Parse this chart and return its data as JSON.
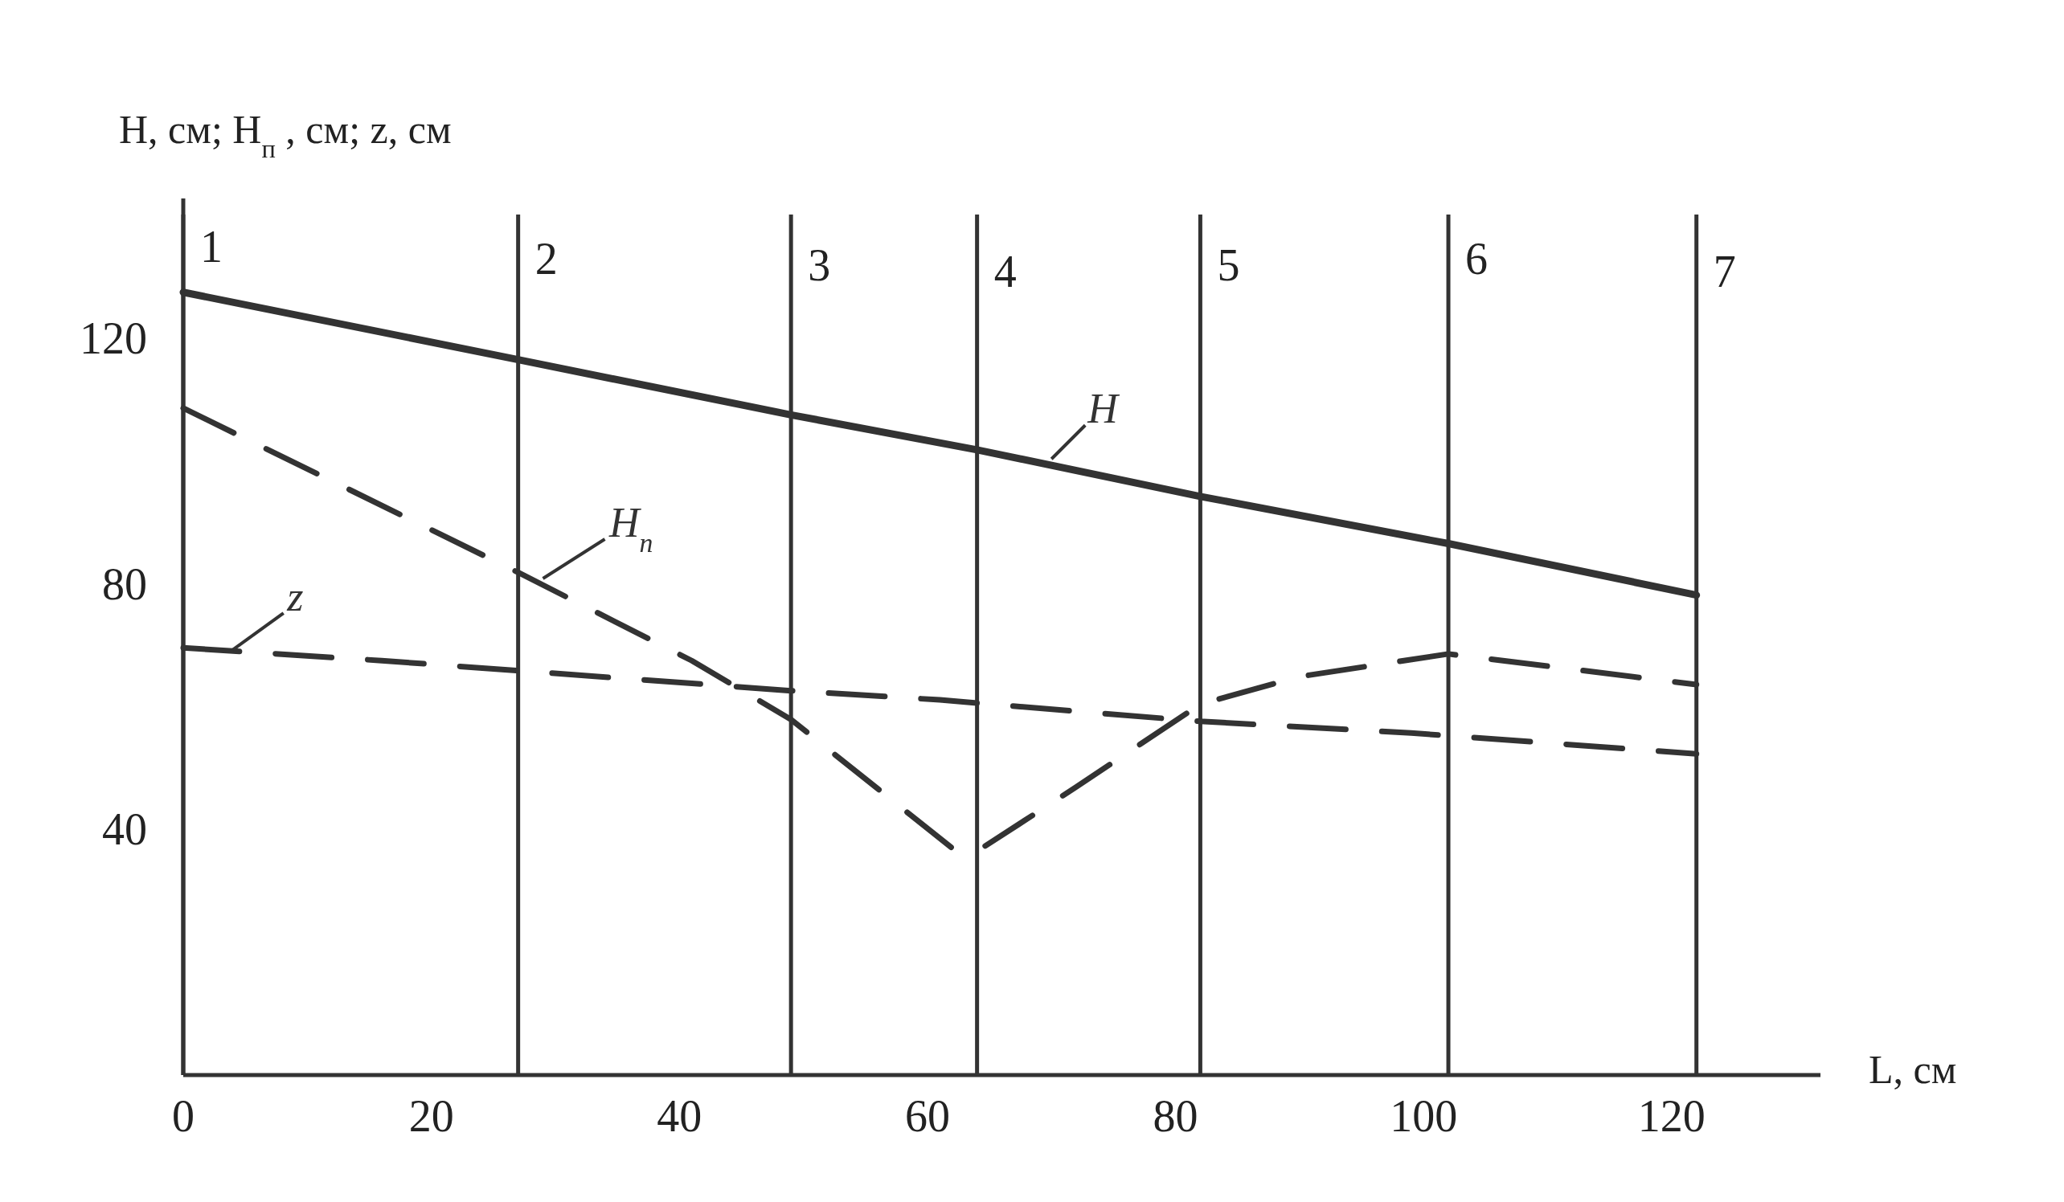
{
  "chart_data": {
    "type": "line",
    "xlabel": "L, см",
    "ylabel": "H, см; H$_{п}$, см; z, см",
    "xlim": [
      0,
      132
    ],
    "ylim": [
      0,
      143
    ],
    "xticks": [
      0,
      20,
      40,
      60,
      80,
      100,
      120
    ],
    "yticks": [
      40,
      80,
      120
    ],
    "grid": false,
    "series": [
      {
        "name": "H",
        "color": "#333333",
        "line_style": "solid",
        "x": [
          0,
          27,
          49,
          64,
          82,
          102,
          122
        ],
        "values": [
          127.7,
          116.7,
          107.7,
          102,
          94.4,
          86.7,
          78.3
        ]
      },
      {
        "name": "H$_{п}$",
        "color": "#333333",
        "line_style": "dashed",
        "x": [
          0,
          27,
          41,
          49,
          62,
          64,
          72,
          82,
          90,
          102,
          122
        ],
        "values": [
          108.8,
          82,
          67.6,
          58,
          37,
          36.5,
          47,
          60.5,
          65,
          68.7,
          63.7
        ]
      },
      {
        "name": "z",
        "color": "#333333",
        "line_style": "dashed",
        "x": [
          0,
          16,
          49,
          61,
          74,
          82,
          99,
          122
        ],
        "values": [
          69.7,
          67.6,
          62.7,
          61.2,
          59,
          57.7,
          55.8,
          52.4
        ]
      }
    ],
    "ref_lines": [
      {
        "axis": "x",
        "value": 0
      },
      {
        "axis": "x",
        "value": 27
      },
      {
        "axis": "x",
        "value": 49
      },
      {
        "axis": "x",
        "value": 64
      },
      {
        "axis": "x",
        "value": 82
      },
      {
        "axis": "x",
        "value": 102
      },
      {
        "axis": "x",
        "value": 122
      }
    ],
    "annotations": [
      {
        "text": "1",
        "x": 0,
        "y": 135
      },
      {
        "text": "2",
        "x": 27,
        "y": 133
      },
      {
        "text": "3",
        "x": 49,
        "y": 132
      },
      {
        "text": "4",
        "x": 64,
        "y": 131
      },
      {
        "text": "5",
        "x": 82,
        "y": 132
      },
      {
        "text": "6",
        "x": 102,
        "y": 133
      },
      {
        "text": "7",
        "x": 122,
        "y": 131
      }
    ]
  }
}
